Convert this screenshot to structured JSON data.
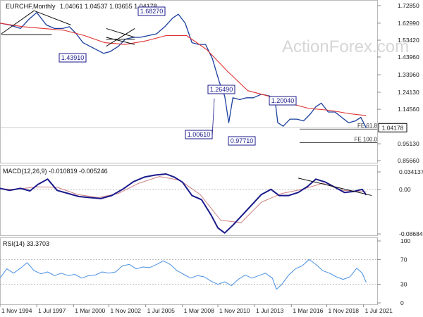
{
  "header": {
    "symbol": "EURCHF,Monthly",
    "ohlc": "1.04061 1.04537 1.03655 1.04178"
  },
  "watermark": "ActionForex.com",
  "colors": {
    "price": "#1a3f9e",
    "sma": "#e03030",
    "macd": "#1a1a8c",
    "signal": "#d08080",
    "rsi": "#4a90e2",
    "annotation_box": "#1a1a8c",
    "current_price_box": "#000000"
  },
  "chart_data": [
    {
      "type": "line",
      "panel": "price",
      "x": [
        "1 Nov 1994",
        "1 Jul 1997",
        "1 Mar 2000",
        "1 Nov 2002",
        "1 Jul 2005",
        "1 Mar 2008",
        "1 Nov 2010",
        "1 Jul 2013",
        "1 Mar 2016",
        "1 Nov 2018",
        "1 Jul 2021"
      ],
      "yticks": [
        "1.72850",
        "1.62990",
        "1.53420",
        "1.43960",
        "1.33960",
        "1.24130",
        "1.14560",
        "1.04178",
        "0.95130",
        "0.85660"
      ],
      "ylim": [
        0.8566,
        1.7285
      ],
      "series": [
        {
          "x": [
            1994.8,
            1995.5,
            1996.3,
            1996.9,
            1997.5,
            1998.2,
            1998.8,
            1999.4,
            1999.9,
            2000.4,
            2000.9,
            2001.4,
            2001.9,
            2002.4,
            2002.9,
            2003.5,
            2004.0,
            2004.6,
            2005.1,
            2005.7,
            2006.3,
            2006.9,
            2007.5,
            2007.9,
            2008.4,
            2008.9,
            2009.4,
            2009.9,
            2010.4,
            2010.9,
            2011.3,
            2011.6,
            2011.9,
            2012.4,
            2012.9,
            2013.4,
            2014.0,
            2014.6,
            2015.0,
            2015.2,
            2015.6,
            2016.1,
            2016.6,
            2017.1,
            2017.6,
            2018.0,
            2018.4,
            2018.9,
            2019.4,
            2019.9,
            2020.4,
            2020.9,
            2021.3,
            2021.7
          ],
          "values": [
            1.63,
            1.62,
            1.6,
            1.65,
            1.69,
            1.62,
            1.6,
            1.6,
            1.61,
            1.57,
            1.52,
            1.5,
            1.48,
            1.46,
            1.47,
            1.5,
            1.54,
            1.55,
            1.55,
            1.56,
            1.57,
            1.61,
            1.66,
            1.68,
            1.63,
            1.52,
            1.51,
            1.51,
            1.43,
            1.3,
            1.22,
            1.07,
            1.21,
            1.2,
            1.21,
            1.21,
            1.23,
            1.22,
            1.2,
            1.07,
            1.05,
            1.09,
            1.09,
            1.08,
            1.12,
            1.16,
            1.18,
            1.13,
            1.13,
            1.1,
            1.07,
            1.08,
            1.1,
            1.04
          ]
        },
        {
          "x": [
            1994.8,
            1996.5,
            1998.0,
            1999.5,
            2001.0,
            2002.5,
            2004.0,
            2005.5,
            2007.0,
            2008.5,
            2010.0,
            2011.5,
            2013.0,
            2014.5,
            2016.0,
            2017.5,
            2019.0,
            2020.5,
            2021.7
          ],
          "values": [
            1.63,
            1.61,
            1.6,
            1.59,
            1.56,
            1.52,
            1.51,
            1.53,
            1.56,
            1.56,
            1.48,
            1.36,
            1.25,
            1.22,
            1.18,
            1.15,
            1.14,
            1.12,
            1.11
          ]
        }
      ],
      "annotations": [
        {
          "label": "1.68270",
          "x": 2005.3,
          "y": 1.6827
        },
        {
          "label": "1.43910",
          "x": 2001.2,
          "y": 1.4391
        },
        {
          "label": "1.26490",
          "x": 2011.6,
          "y": 1.2649
        },
        {
          "label": "1.00610",
          "x": 2011.3,
          "y": 1.0061
        },
        {
          "label": "0.97710",
          "x": 2015.0,
          "y": 0.9771
        },
        {
          "label": "1.20040",
          "x": 2018.0,
          "y": 1.2004
        }
      ],
      "fe_levels": [
        {
          "label": "FE 61.8",
          "y": 1.034
        },
        {
          "label": "FE 100.0",
          "y": 0.958
        }
      ],
      "current_price": "1.04178"
    },
    {
      "type": "line",
      "panel": "macd",
      "title": "MACD(12,26,9) -0.010819 -0.005246",
      "yticks": [
        "0.034137",
        "0.00",
        "-0.086849"
      ],
      "ylim": [
        -0.086849,
        0.034137
      ],
      "series": [
        {
          "x": [
            1994.8,
            1995.5,
            1996.3,
            1997.0,
            1997.6,
            1998.3,
            1999.0,
            1999.8,
            2000.6,
            2001.4,
            2002.2,
            2003.0,
            2003.8,
            2004.6,
            2005.4,
            2006.2,
            2007.0,
            2007.6,
            2008.2,
            2008.9,
            2009.6,
            2010.3,
            2010.8,
            2011.3,
            2011.9,
            2012.6,
            2013.3,
            2014.0,
            2014.7,
            2015.3,
            2016.0,
            2016.7,
            2017.4,
            2018.0,
            2018.7,
            2019.4,
            2020.1,
            2020.8,
            2021.4,
            2021.7
          ],
          "values": [
            0.002,
            -0.002,
            0.002,
            -0.003,
            0.01,
            0.02,
            -0.002,
            -0.008,
            -0.014,
            -0.016,
            -0.018,
            -0.012,
            0.0,
            0.015,
            0.024,
            0.028,
            0.03,
            0.024,
            0.014,
            -0.012,
            -0.02,
            -0.05,
            -0.075,
            -0.085,
            -0.07,
            -0.05,
            -0.03,
            -0.01,
            0.0,
            -0.012,
            -0.012,
            -0.006,
            0.006,
            0.02,
            0.014,
            0.004,
            -0.006,
            -0.004,
            0.0,
            -0.011
          ]
        },
        {
          "x": [
            1994.8,
            1996.0,
            1997.5,
            1999.0,
            2000.5,
            2002.0,
            2003.5,
            2005.0,
            2006.5,
            2008.0,
            2009.5,
            2011.0,
            2012.5,
            2014.0,
            2015.5,
            2017.0,
            2018.5,
            2020.0,
            2021.7
          ],
          "values": [
            0.001,
            0.0,
            0.005,
            0.004,
            -0.01,
            -0.016,
            -0.008,
            0.012,
            0.025,
            0.018,
            -0.01,
            -0.06,
            -0.065,
            -0.025,
            -0.008,
            0.0,
            0.012,
            -0.002,
            -0.005
          ]
        }
      ]
    },
    {
      "type": "line",
      "panel": "rsi",
      "title": "RSI(14) 33.3703",
      "yticks": [
        "100",
        "70",
        "30",
        "0"
      ],
      "ylim": [
        0,
        100
      ],
      "series": [
        {
          "x": [
            1994.8,
            1995.3,
            1995.8,
            1996.3,
            1996.8,
            1997.3,
            1997.8,
            1998.3,
            1998.8,
            1999.3,
            1999.8,
            2000.3,
            2000.8,
            2001.3,
            2001.8,
            2002.3,
            2002.8,
            2003.3,
            2003.8,
            2004.3,
            2004.8,
            2005.3,
            2005.8,
            2006.3,
            2006.8,
            2007.3,
            2007.8,
            2008.3,
            2008.8,
            2009.3,
            2009.8,
            2010.3,
            2010.8,
            2011.3,
            2011.8,
            2012.3,
            2012.8,
            2013.3,
            2013.8,
            2014.3,
            2014.8,
            2015.1,
            2015.5,
            2016.0,
            2016.5,
            2017.0,
            2017.5,
            2018.0,
            2018.5,
            2019.0,
            2019.5,
            2020.0,
            2020.5,
            2021.0,
            2021.4,
            2021.7
          ],
          "values": [
            40,
            55,
            48,
            56,
            65,
            52,
            47,
            50,
            44,
            48,
            44,
            46,
            40,
            44,
            45,
            50,
            48,
            50,
            60,
            62,
            55,
            58,
            57,
            62,
            68,
            62,
            52,
            46,
            40,
            44,
            42,
            35,
            30,
            34,
            28,
            38,
            45,
            40,
            44,
            48,
            40,
            22,
            30,
            45,
            55,
            60,
            70,
            62,
            52,
            48,
            42,
            38,
            42,
            56,
            48,
            33
          ]
        }
      ]
    }
  ]
}
